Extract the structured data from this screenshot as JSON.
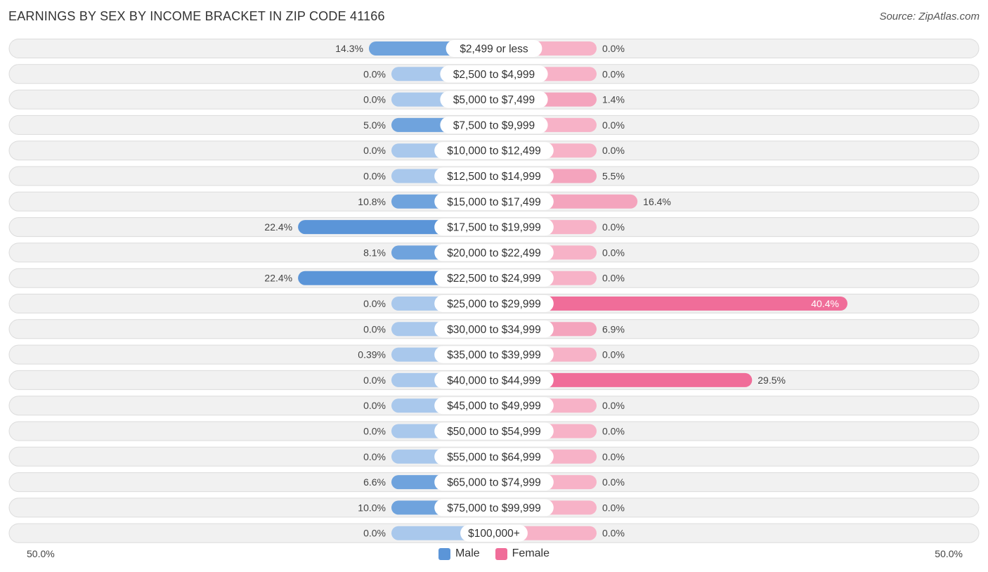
{
  "title": "EARNINGS BY SEX BY INCOME BRACKET IN ZIP CODE 41166",
  "source": "Source: ZipAtlas.com",
  "colors": {
    "male": "#6fa3dd",
    "male_strong": "#5b95d8",
    "male_light": "#a9c8ec",
    "female": "#f4a4bd",
    "female_strong": "#f06d99",
    "female_light": "#f7b2c7",
    "row_bg": "#f1f1f1",
    "row_border": "#dcdcdc"
  },
  "axis": {
    "left_label": "50.0%",
    "right_label": "50.0%",
    "max": 50
  },
  "legend": {
    "male": "Male",
    "female": "Female"
  },
  "chart_data": {
    "type": "bar",
    "orientation": "horizontal-diverging",
    "title": "EARNINGS BY SEX BY INCOME BRACKET IN ZIP CODE 41166",
    "xlim": [
      -50,
      50
    ],
    "categories": [
      "$2,499 or less",
      "$2,500 to $4,999",
      "$5,000 to $7,499",
      "$7,500 to $9,999",
      "$10,000 to $12,499",
      "$12,500 to $14,999",
      "$15,000 to $17,499",
      "$17,500 to $19,999",
      "$20,000 to $22,499",
      "$22,500 to $24,999",
      "$25,000 to $29,999",
      "$30,000 to $34,999",
      "$35,000 to $39,999",
      "$40,000 to $44,999",
      "$45,000 to $49,999",
      "$50,000 to $54,999",
      "$55,000 to $64,999",
      "$65,000 to $74,999",
      "$75,000 to $99,999",
      "$100,000+"
    ],
    "series": [
      {
        "name": "Male",
        "values": [
          14.3,
          0.0,
          0.0,
          5.0,
          0.0,
          0.0,
          10.8,
          22.4,
          8.1,
          22.4,
          0.0,
          0.0,
          0.39,
          0.0,
          0.0,
          0.0,
          0.0,
          6.6,
          10.0,
          0.0
        ],
        "labels": [
          "14.3%",
          "0.0%",
          "0.0%",
          "5.0%",
          "0.0%",
          "0.0%",
          "10.8%",
          "22.4%",
          "8.1%",
          "22.4%",
          "0.0%",
          "0.0%",
          "0.39%",
          "0.0%",
          "0.0%",
          "0.0%",
          "0.0%",
          "6.6%",
          "10.0%",
          "0.0%"
        ]
      },
      {
        "name": "Female",
        "values": [
          0.0,
          0.0,
          1.4,
          0.0,
          0.0,
          5.5,
          16.4,
          0.0,
          0.0,
          0.0,
          40.4,
          6.9,
          0.0,
          29.5,
          0.0,
          0.0,
          0.0,
          0.0,
          0.0,
          0.0
        ],
        "labels": [
          "0.0%",
          "0.0%",
          "1.4%",
          "0.0%",
          "0.0%",
          "5.5%",
          "16.4%",
          "0.0%",
          "0.0%",
          "0.0%",
          "40.4%",
          "6.9%",
          "0.0%",
          "29.5%",
          "0.0%",
          "0.0%",
          "0.0%",
          "0.0%",
          "0.0%",
          "0.0%"
        ]
      }
    ]
  }
}
